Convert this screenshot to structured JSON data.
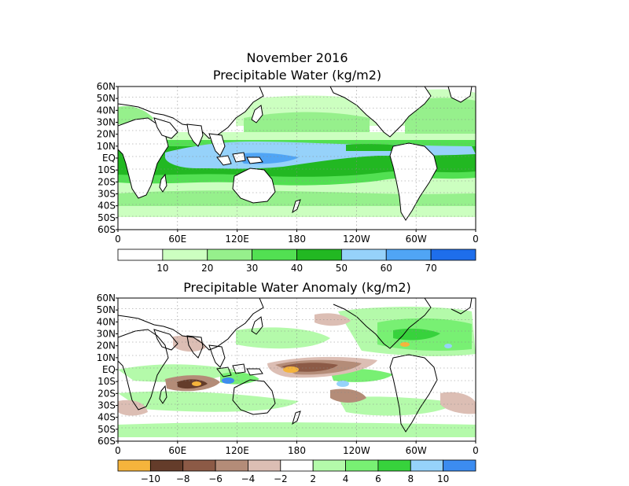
{
  "figure": {
    "title_line1": "November 2016",
    "title_line2": "Precipitable Water (kg/m2)",
    "title_anomaly": "Precipitable Water Anomaly (kg/m2)"
  },
  "axes": {
    "lat_labels": [
      "60N",
      "50N",
      "40N",
      "30N",
      "20N",
      "10N",
      "EQ",
      "10S",
      "20S",
      "30S",
      "40S",
      "50S",
      "60S"
    ],
    "lon_labels": [
      "0",
      "60E",
      "120E",
      "180",
      "120W",
      "60W",
      "0"
    ]
  },
  "colors": {
    "land_outline": "#000000",
    "grid": "#888888"
  },
  "legend_pw": {
    "labels": [
      "10",
      "20",
      "30",
      "40",
      "50",
      "60",
      "70"
    ],
    "colors": [
      "#ffffff",
      "#ccffc0",
      "#96f08c",
      "#52e052",
      "#22b822",
      "#96d2fa",
      "#50a5f5",
      "#1e6eeb"
    ]
  },
  "legend_anom": {
    "labels": [
      "−10",
      "−8",
      "−6",
      "−4",
      "−2",
      "2",
      "4",
      "6",
      "8",
      "10"
    ],
    "colors": [
      "#f5b43c",
      "#643c2a",
      "#8c5a46",
      "#b48c78",
      "#dcbeb4",
      "#ffffff",
      "#b4faaa",
      "#78f073",
      "#37d23c",
      "#96d2fa",
      "#3c8cf0"
    ]
  }
}
